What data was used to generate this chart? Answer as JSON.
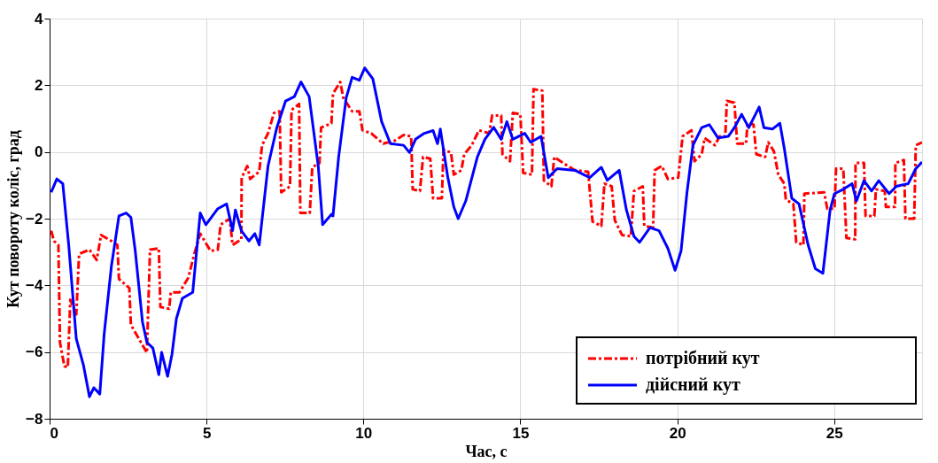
{
  "chart_data": {
    "type": "line",
    "xlabel": "Час, с",
    "ylabel": "Кут повороту коліс, град",
    "xlim": [
      0,
      27.8
    ],
    "ylim": [
      -8,
      4
    ],
    "xticks": [
      0,
      5,
      10,
      15,
      20,
      25
    ],
    "yticks": [
      -8,
      -6,
      -4,
      -2,
      0,
      2,
      4
    ],
    "grid": true,
    "legend": "bottom right",
    "series": [
      {
        "name": "потрібний кут",
        "color": "#ff0000",
        "line_style": "dashed",
        "x": [
          0.05,
          0.14,
          0.28,
          0.33,
          0.47,
          0.58,
          0.66,
          0.85,
          0.94,
          1.27,
          1.5,
          1.64,
          1.97,
          2.16,
          2.21,
          2.54,
          2.59,
          2.91,
          3.1,
          3.2,
          3.48,
          3.53,
          3.81,
          3.86,
          4.14,
          4.42,
          4.61,
          4.8,
          5.13,
          5.36,
          5.45,
          5.74,
          5.83,
          6.11,
          6.12,
          6.3,
          6.39,
          6.68,
          6.77,
          6.96,
          7.15,
          7.33,
          7.38,
          7.66,
          7.71,
          7.95,
          7.99,
          8.29,
          8.37,
          8.6,
          8.65,
          8.98,
          9.03,
          9.26,
          9.36,
          9.64,
          9.87,
          9.97,
          10.25,
          10.63,
          11.0,
          11.28,
          11.52,
          11.57,
          11.8,
          11.9,
          12.13,
          12.22,
          12.5,
          12.55,
          12.79,
          12.88,
          13.12,
          13.21,
          13.45,
          13.68,
          14.01,
          14.1,
          14.39,
          14.43,
          14.67,
          14.76,
          15.0,
          15.09,
          15.37,
          15.42,
          15.7,
          15.75,
          15.99,
          16.08,
          16.36,
          16.74,
          17.16,
          17.3,
          17.58,
          17.68,
          17.91,
          18.01,
          18.24,
          18.52,
          18.62,
          18.9,
          18.95,
          19.23,
          19.28,
          19.51,
          19.7,
          20.03,
          20.17,
          20.45,
          20.55,
          20.78,
          20.87,
          21.2,
          21.35,
          21.53,
          21.58,
          21.82,
          21.91,
          22.19,
          22.24,
          22.43,
          22.52,
          22.8,
          22.9,
          23.08,
          23.22,
          23.41,
          23.46,
          23.7,
          23.79,
          24.02,
          24.05,
          24.68,
          24.78,
          25.01,
          25.06,
          25.29,
          25.39,
          25.67,
          25.68,
          25.95,
          26.0,
          26.28,
          26.33,
          26.61,
          26.65,
          26.94,
          26.95,
          27.22,
          27.27,
          27.55,
          27.6,
          27.8
        ],
        "values": [
          -2.36,
          -2.67,
          -2.79,
          -5.71,
          -6.42,
          -6.46,
          -4.43,
          -4.87,
          -3.06,
          -2.93,
          -3.24,
          -2.49,
          -2.67,
          -2.79,
          -3.81,
          -4.08,
          -5.18,
          -5.71,
          -6.02,
          -2.93,
          -2.89,
          -4.65,
          -4.7,
          -4.21,
          -4.21,
          -3.77,
          -3.06,
          -2.45,
          -2.97,
          -2.93,
          -2.18,
          -2.0,
          -2.79,
          -2.62,
          -0.77,
          -0.42,
          -0.81,
          -0.59,
          0.2,
          0.56,
          1.17,
          1.22,
          -1.21,
          -1.03,
          1.26,
          1.44,
          -1.83,
          -1.83,
          -0.46,
          -0.33,
          0.73,
          0.86,
          1.75,
          2.1,
          1.62,
          1.22,
          1.22,
          0.65,
          0.56,
          0.25,
          0.34,
          0.51,
          0.47,
          -1.12,
          -1.17,
          -0.15,
          -0.2,
          -1.39,
          -1.39,
          0.07,
          -0.02,
          -0.68,
          -0.55,
          -0.07,
          0.2,
          0.65,
          0.56,
          1.09,
          1.09,
          -0.07,
          -0.28,
          1.17,
          1.13,
          -0.63,
          -0.68,
          1.88,
          1.84,
          -0.86,
          -1.03,
          -0.15,
          -0.33,
          -0.55,
          -0.59,
          -2.09,
          -2.22,
          -0.95,
          -1.03,
          -2.05,
          -2.49,
          -2.53,
          -1.17,
          -1.03,
          -2.22,
          -2.27,
          -0.55,
          -0.42,
          -0.81,
          -0.77,
          0.47,
          0.65,
          -0.28,
          -0.07,
          0.42,
          0.2,
          0.47,
          0.47,
          1.53,
          1.48,
          0.25,
          0.25,
          0.86,
          0.82,
          -0.07,
          -0.15,
          0.29,
          0.02,
          -0.68,
          -0.95,
          -1.43,
          -1.56,
          -2.71,
          -2.79,
          -1.25,
          -1.21,
          -1.7,
          -1.7,
          -0.5,
          -0.5,
          -2.58,
          -2.62,
          -0.33,
          -0.33,
          -1.92,
          -1.92,
          -1.12,
          -1.17,
          -1.65,
          -1.65,
          -0.33,
          -0.24,
          -2.0,
          -2.0,
          0.2,
          0.29
        ]
      },
      {
        "name": "дійсний кут",
        "color": "#0000ff",
        "line_style": "solid",
        "x": [
          0.05,
          0.23,
          0.42,
          0.61,
          0.85,
          1.08,
          1.27,
          1.41,
          1.6,
          1.74,
          1.97,
          2.21,
          2.44,
          2.59,
          2.73,
          2.96,
          3.1,
          3.29,
          3.48,
          3.57,
          3.76,
          3.9,
          4.04,
          4.23,
          4.56,
          4.8,
          4.98,
          5.36,
          5.64,
          5.83,
          5.92,
          6.11,
          6.35,
          6.54,
          6.68,
          6.96,
          7.24,
          7.52,
          7.8,
          8.01,
          8.27,
          8.56,
          8.7,
          8.98,
          9.03,
          9.21,
          9.45,
          9.64,
          9.87,
          10.04,
          10.3,
          10.58,
          10.86,
          11.28,
          11.47,
          11.66,
          11.94,
          12.22,
          12.36,
          12.45,
          12.69,
          12.88,
          13.02,
          13.26,
          13.63,
          13.87,
          14.15,
          14.39,
          14.57,
          14.76,
          15.14,
          15.33,
          15.66,
          15.89,
          16.17,
          16.74,
          17.21,
          17.58,
          17.77,
          18.15,
          18.38,
          18.62,
          18.8,
          19.13,
          19.42,
          19.7,
          19.93,
          20.12,
          20.31,
          20.5,
          20.78,
          21.02,
          21.3,
          21.63,
          21.82,
          22.05,
          22.28,
          22.61,
          22.76,
          23.04,
          23.27,
          23.41,
          23.65,
          23.88,
          24.17,
          24.4,
          24.64,
          24.87,
          25.01,
          25.29,
          25.57,
          25.71,
          25.95,
          26.19,
          26.42,
          26.75,
          26.98,
          27.36,
          27.6,
          27.8
        ],
        "values": [
          -1.21,
          -0.81,
          -0.95,
          -2.8,
          -5.6,
          -6.4,
          -7.34,
          -7.07,
          -7.26,
          -5.45,
          -3.42,
          -1.92,
          -1.83,
          -1.96,
          -2.97,
          -5.1,
          -5.71,
          -5.88,
          -6.68,
          -6.01,
          -6.73,
          -6.07,
          -5.0,
          -4.39,
          -4.21,
          -1.83,
          -2.18,
          -1.7,
          -1.56,
          -2.36,
          -1.74,
          -2.36,
          -2.67,
          -2.45,
          -2.79,
          -0.42,
          0.73,
          1.53,
          1.66,
          2.1,
          1.66,
          -0.42,
          -2.18,
          -1.87,
          -1.92,
          -0.15,
          1.62,
          2.24,
          2.15,
          2.52,
          2.19,
          0.91,
          0.25,
          0.2,
          -0.02,
          0.38,
          0.56,
          0.64,
          0.25,
          0.69,
          -0.77,
          -1.65,
          -2.0,
          -1.47,
          -0.15,
          0.38,
          0.74,
          0.38,
          0.91,
          0.38,
          0.56,
          0.29,
          0.47,
          -0.77,
          -0.5,
          -0.55,
          -0.77,
          -0.46,
          -0.85,
          -0.55,
          -1.74,
          -2.53,
          -2.71,
          -2.27,
          -2.36,
          -2.89,
          -3.55,
          -2.97,
          -1.21,
          0.2,
          0.73,
          0.82,
          0.42,
          0.47,
          0.73,
          1.13,
          0.73,
          1.35,
          0.73,
          0.69,
          0.86,
          0.11,
          -1.39,
          -1.56,
          -2.79,
          -3.5,
          -3.64,
          -1.74,
          -1.25,
          -1.12,
          -0.95,
          -1.47,
          -0.86,
          -1.17,
          -0.86,
          -1.25,
          -1.03,
          -0.95,
          -0.5,
          -0.3
        ]
      }
    ]
  }
}
